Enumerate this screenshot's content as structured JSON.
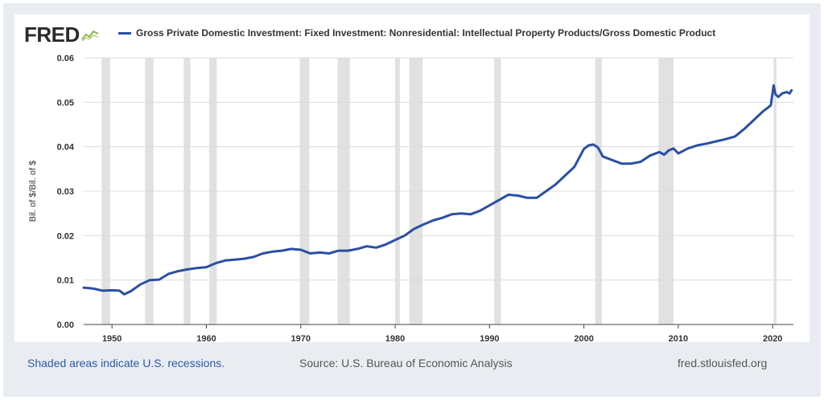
{
  "header": {
    "logo_text": "FRED",
    "logo_icon": "chart-line-icon",
    "series_label": "Gross Private Domestic Investment: Fixed Investment: Nonresidential: Intellectual Property Products/Gross Domestic Product"
  },
  "footer": {
    "recessions_note": "Shaded areas indicate U.S. recessions.",
    "source": "Source: U.S. Bureau of Economic Analysis",
    "site": "fred.stlouisfed.org"
  },
  "colors": {
    "series": "#2a4fa3",
    "recession": "#e1e1e1",
    "grid": "#dcdcdc",
    "background": "#e9edf2"
  },
  "chart_data": {
    "type": "line",
    "title": "",
    "ylabel": "Bil. of $/Bil. of $",
    "xlabel": "",
    "xlim": [
      1947,
      2022.2
    ],
    "ylim": [
      0,
      0.06
    ],
    "x_ticks": [
      1950,
      1960,
      1970,
      1980,
      1990,
      2000,
      2010,
      2020
    ],
    "x_tick_labels": [
      "1950",
      "1960",
      "1970",
      "1980",
      "1990",
      "2000",
      "2010",
      "2020"
    ],
    "y_ticks": [
      0,
      0.01,
      0.02,
      0.03,
      0.04,
      0.05,
      0.06
    ],
    "y_tick_labels": [
      "0.00",
      "0.01",
      "0.02",
      "0.03",
      "0.04",
      "0.05",
      "0.06"
    ],
    "grid": true,
    "recessions": [
      [
        1948.9,
        1949.8
      ],
      [
        1953.5,
        1954.4
      ],
      [
        1957.6,
        1958.3
      ],
      [
        1960.3,
        1961.1
      ],
      [
        1969.9,
        1970.9
      ],
      [
        1973.9,
        1975.2
      ],
      [
        1980.0,
        1980.5
      ],
      [
        1981.5,
        1982.9
      ],
      [
        1990.5,
        1991.2
      ],
      [
        2001.2,
        2001.9
      ],
      [
        2007.9,
        2009.5
      ],
      [
        2020.1,
        2020.4
      ]
    ],
    "series": [
      {
        "name": "Gross Private Domestic Investment: Fixed Investment: Nonresidential: Intellectual Property Products/Gross Domestic Product",
        "x": [
          1947.0,
          1948.0,
          1949.0,
          1950.0,
          1950.8,
          1951.3,
          1952.0,
          1953.0,
          1954.0,
          1955.0,
          1956.0,
          1957.0,
          1958.0,
          1959.0,
          1960.0,
          1961.0,
          1962.0,
          1963.0,
          1964.0,
          1965.0,
          1966.0,
          1967.0,
          1968.0,
          1969.0,
          1970.0,
          1971.0,
          1972.0,
          1973.0,
          1974.0,
          1975.0,
          1976.0,
          1977.0,
          1978.0,
          1979.0,
          1980.0,
          1981.0,
          1982.0,
          1983.0,
          1984.0,
          1985.0,
          1986.0,
          1987.0,
          1988.0,
          1989.0,
          1990.0,
          1991.0,
          1992.0,
          1993.0,
          1994.0,
          1995.0,
          1996.0,
          1997.0,
          1998.0,
          1999.0,
          2000.0,
          2000.5,
          2001.0,
          2001.5,
          2002.0,
          2003.0,
          2004.0,
          2005.0,
          2006.0,
          2007.0,
          2008.0,
          2008.5,
          2009.0,
          2009.5,
          2010.0,
          2011.0,
          2012.0,
          2013.0,
          2014.0,
          2015.0,
          2016.0,
          2017.0,
          2018.0,
          2019.0,
          2019.8,
          2020.1,
          2020.3,
          2020.6,
          2021.0,
          2021.5,
          2021.8,
          2022.0
        ],
        "values": [
          0.0083,
          0.0081,
          0.0076,
          0.0077,
          0.0076,
          0.0068,
          0.0075,
          0.009,
          0.01,
          0.0101,
          0.0114,
          0.012,
          0.0124,
          0.0127,
          0.0129,
          0.0138,
          0.0144,
          0.0146,
          0.0148,
          0.0152,
          0.016,
          0.0164,
          0.0166,
          0.017,
          0.0168,
          0.016,
          0.0162,
          0.016,
          0.0166,
          0.0166,
          0.017,
          0.0176,
          0.0173,
          0.018,
          0.019,
          0.02,
          0.0215,
          0.0225,
          0.0234,
          0.024,
          0.0248,
          0.025,
          0.0248,
          0.0256,
          0.0268,
          0.028,
          0.0292,
          0.029,
          0.0285,
          0.0285,
          0.03,
          0.0315,
          0.0335,
          0.0355,
          0.0395,
          0.0403,
          0.0405,
          0.0398,
          0.0378,
          0.037,
          0.0362,
          0.0362,
          0.0366,
          0.038,
          0.0388,
          0.0382,
          0.0392,
          0.0396,
          0.0385,
          0.0396,
          0.0403,
          0.0407,
          0.0412,
          0.0417,
          0.0423,
          0.044,
          0.046,
          0.048,
          0.0493,
          0.0538,
          0.0518,
          0.0512,
          0.052,
          0.0523,
          0.052,
          0.0527
        ]
      }
    ]
  }
}
